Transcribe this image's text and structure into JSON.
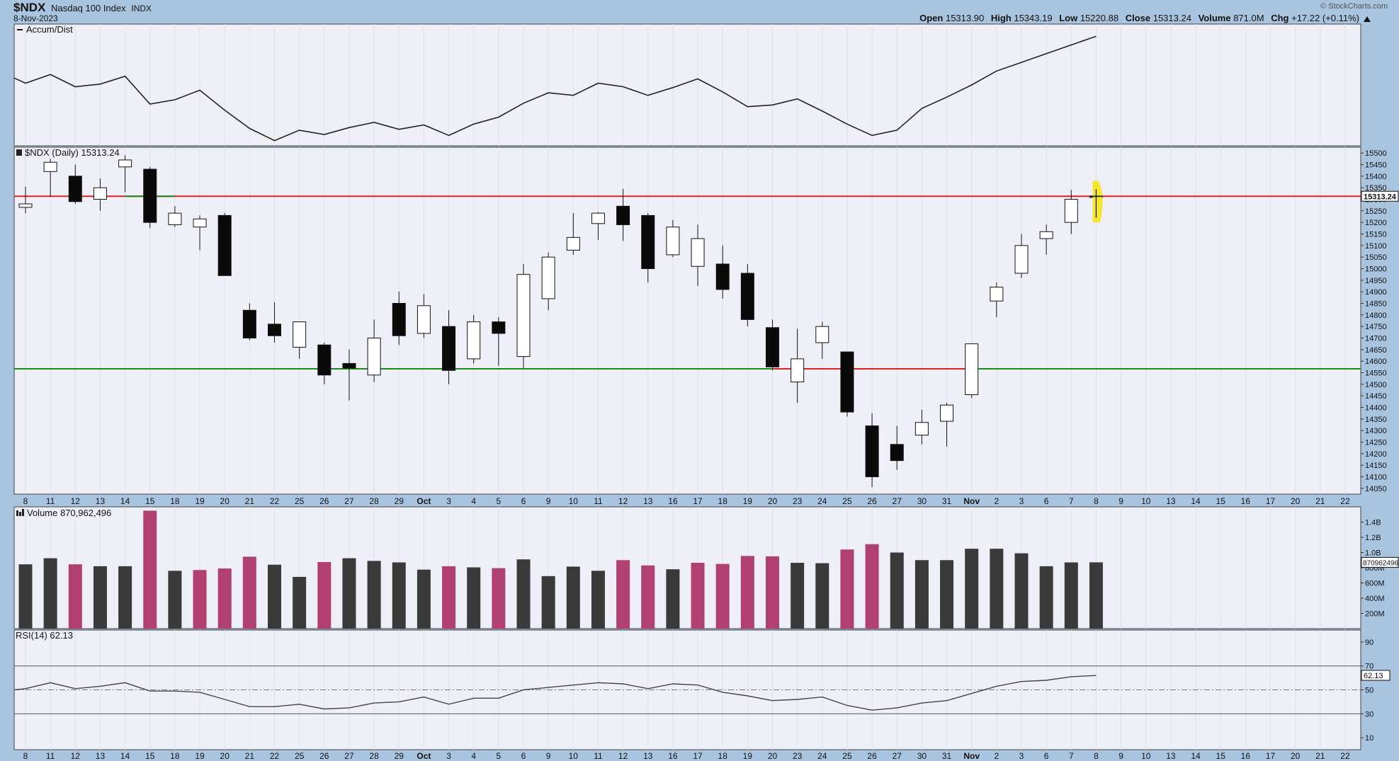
{
  "header": {
    "symbol": "$NDX",
    "name": "Nasdaq 100 Index",
    "exchange": "INDX",
    "date": "8-Nov-2023",
    "source": "© StockCharts.com",
    "ohlc": {
      "open_label": "Open",
      "open": "15313.90",
      "high_label": "High",
      "high": "15343.19",
      "low_label": "Low",
      "low": "15220.88",
      "close_label": "Close",
      "close": "15313.24",
      "volume_label": "Volume",
      "volume": "871.0M",
      "chg_label": "Chg",
      "chg": "+17.22 (+0.11%)"
    }
  },
  "panels": {
    "accum": {
      "label": "Accum/Dist"
    },
    "price": {
      "label": "$NDX (Daily) 15313.24",
      "last_value": "15313.24"
    },
    "volume": {
      "label": "Volume 870,962,496",
      "last_value": "870962496"
    },
    "rsi": {
      "label": "RSI(14) 62.13",
      "last_value": "62.13"
    }
  },
  "colors": {
    "background": "#a9c4df",
    "panel": "#efeff7",
    "resistance": "#e02020",
    "support": "#1a8a1a",
    "volume_up": "#3a3a3a",
    "volume_down": "#b04070",
    "highlight": "#f5e41a"
  },
  "chart_data": [
    {
      "type": "line",
      "panel": "Accum/Dist",
      "title": "Accum/Dist",
      "x": [
        "8",
        "11",
        "12",
        "13",
        "14",
        "15",
        "18",
        "19",
        "20",
        "21",
        "22",
        "25",
        "26",
        "27",
        "28",
        "29",
        "Oct",
        "3",
        "4",
        "5",
        "6",
        "9",
        "10",
        "11",
        "12",
        "13",
        "16",
        "17",
        "18",
        "19",
        "20",
        "23",
        "24",
        "25",
        "26",
        "27",
        "30",
        "31",
        "Nov",
        "2",
        "3",
        "6",
        "7",
        "8"
      ],
      "values": [
        72,
        82,
        68,
        71,
        80,
        48,
        53,
        64,
        41,
        20,
        6,
        18,
        13,
        21,
        27,
        19,
        24,
        12,
        25,
        33,
        49,
        61,
        58,
        72,
        68,
        58,
        67,
        77,
        62,
        45,
        47,
        54,
        40,
        25,
        12,
        18,
        43,
        56,
        70,
        86,
        96,
        106,
        116,
        126
      ],
      "ylim": [
        0,
        140
      ]
    },
    {
      "type": "candlestick",
      "panel": "$NDX (Daily)",
      "title": "$NDX (Daily) 15313.24",
      "ylim": [
        14025,
        15525
      ],
      "yticks": [
        14050,
        14100,
        14150,
        14200,
        14250,
        14300,
        14350,
        14400,
        14450,
        14500,
        14550,
        14600,
        14650,
        14700,
        14750,
        14800,
        14850,
        14900,
        14950,
        15000,
        15050,
        15100,
        15150,
        15200,
        15250,
        15300,
        15350,
        15400,
        15450,
        15500
      ],
      "candles": [
        {
          "x": "8",
          "open": 15265,
          "high": 15355,
          "low": 15240,
          "close": 15280
        },
        {
          "x": "11",
          "open": 15420,
          "high": 15475,
          "low": 15310,
          "close": 15460
        },
        {
          "x": "12",
          "open": 15400,
          "high": 15450,
          "low": 15280,
          "close": 15290
        },
        {
          "x": "13",
          "open": 15300,
          "high": 15390,
          "low": 15250,
          "close": 15350
        },
        {
          "x": "14",
          "open": 15440,
          "high": 15490,
          "low": 15330,
          "close": 15470
        },
        {
          "x": "15",
          "open": 15430,
          "high": 15440,
          "low": 15175,
          "close": 15200
        },
        {
          "x": "18",
          "open": 15190,
          "high": 15270,
          "low": 15180,
          "close": 15240
        },
        {
          "x": "19",
          "open": 15180,
          "high": 15230,
          "low": 15080,
          "close": 15215
        },
        {
          "x": "20",
          "open": 15230,
          "high": 15240,
          "low": 14970,
          "close": 14970
        },
        {
          "x": "21",
          "open": 14820,
          "high": 14850,
          "low": 14690,
          "close": 14700
        },
        {
          "x": "22",
          "open": 14760,
          "high": 14855,
          "low": 14680,
          "close": 14710
        },
        {
          "x": "25",
          "open": 14660,
          "high": 14770,
          "low": 14610,
          "close": 14770
        },
        {
          "x": "26",
          "open": 14670,
          "high": 14680,
          "low": 14500,
          "close": 14540
        },
        {
          "x": "27",
          "open": 14590,
          "high": 14650,
          "low": 14430,
          "close": 14570
        },
        {
          "x": "28",
          "open": 14540,
          "high": 14780,
          "low": 14510,
          "close": 14700
        },
        {
          "x": "29",
          "open": 14850,
          "high": 14900,
          "low": 14670,
          "close": 14710
        },
        {
          "x": "Oct",
          "open": 14720,
          "high": 14890,
          "low": 14700,
          "close": 14840
        },
        {
          "x": "3",
          "open": 14750,
          "high": 14820,
          "low": 14500,
          "close": 14560
        },
        {
          "x": "4",
          "open": 14610,
          "high": 14800,
          "low": 14590,
          "close": 14770
        },
        {
          "x": "5",
          "open": 14770,
          "high": 14790,
          "low": 14580,
          "close": 14720
        },
        {
          "x": "6",
          "open": 14620,
          "high": 15020,
          "low": 14570,
          "close": 14975
        },
        {
          "x": "9",
          "open": 14870,
          "high": 15070,
          "low": 14820,
          "close": 15050
        },
        {
          "x": "10",
          "open": 15080,
          "high": 15240,
          "low": 15060,
          "close": 15135
        },
        {
          "x": "11",
          "open": 15195,
          "high": 15245,
          "low": 15125,
          "close": 15240
        },
        {
          "x": "12",
          "open": 15270,
          "high": 15345,
          "low": 15120,
          "close": 15190
        },
        {
          "x": "13",
          "open": 15230,
          "high": 15240,
          "low": 14940,
          "close": 15000
        },
        {
          "x": "16",
          "open": 15060,
          "high": 15210,
          "low": 15050,
          "close": 15180
        },
        {
          "x": "17",
          "open": 15010,
          "high": 15190,
          "low": 14925,
          "close": 15130
        },
        {
          "x": "18",
          "open": 15020,
          "high": 15100,
          "low": 14870,
          "close": 14910
        },
        {
          "x": "19",
          "open": 14980,
          "high": 15020,
          "low": 14750,
          "close": 14780
        },
        {
          "x": "20",
          "open": 14745,
          "high": 14780,
          "low": 14560,
          "close": 14575
        },
        {
          "x": "23",
          "open": 14510,
          "high": 14740,
          "low": 14420,
          "close": 14610
        },
        {
          "x": "24",
          "open": 14680,
          "high": 14770,
          "low": 14610,
          "close": 14750
        },
        {
          "x": "25",
          "open": 14640,
          "high": 14640,
          "low": 14360,
          "close": 14380
        },
        {
          "x": "26",
          "open": 14320,
          "high": 14375,
          "low": 14055,
          "close": 14100
        },
        {
          "x": "27",
          "open": 14240,
          "high": 14320,
          "low": 14130,
          "close": 14170
        },
        {
          "x": "30",
          "open": 14280,
          "high": 14390,
          "low": 14240,
          "close": 14335
        },
        {
          "x": "31",
          "open": 14340,
          "high": 14420,
          "low": 14230,
          "close": 14410
        },
        {
          "x": "Nov",
          "open": 14455,
          "high": 14670,
          "low": 14440,
          "close": 14675
        },
        {
          "x": "2",
          "open": 14860,
          "high": 14940,
          "low": 14790,
          "close": 14920
        },
        {
          "x": "3",
          "open": 14980,
          "high": 15150,
          "low": 14960,
          "close": 15100
        },
        {
          "x": "6",
          "open": 15130,
          "high": 15190,
          "low": 15060,
          "close": 15160
        },
        {
          "x": "7",
          "open": 15200,
          "high": 15340,
          "low": 15150,
          "close": 15300
        },
        {
          "x": "8",
          "open": 15314,
          "high": 15343,
          "low": 15221,
          "close": 15313
        }
      ],
      "resistance": 15313,
      "support": 14567
    },
    {
      "type": "bar",
      "panel": "Volume",
      "title": "Volume 870,962,496",
      "ylim": [
        0,
        1600
      ],
      "yticks": [
        "200M",
        "400M",
        "600M",
        "800M",
        "1.0B",
        "1.2B",
        "1.4B"
      ],
      "yticks_values": [
        200,
        400,
        600,
        800,
        1000,
        1200,
        1400
      ],
      "categories": [
        "8",
        "11",
        "12",
        "13",
        "14",
        "15",
        "18",
        "19",
        "20",
        "21",
        "22",
        "25",
        "26",
        "27",
        "28",
        "29",
        "Oct",
        "3",
        "4",
        "5",
        "6",
        "9",
        "10",
        "11",
        "12",
        "13",
        "16",
        "17",
        "18",
        "19",
        "20",
        "23",
        "24",
        "25",
        "26",
        "27",
        "30",
        "31",
        "Nov",
        "2",
        "3",
        "6",
        "7",
        "8"
      ],
      "values": [
        845,
        925,
        845,
        820,
        820,
        1550,
        760,
        770,
        790,
        945,
        840,
        680,
        875,
        925,
        890,
        870,
        775,
        820,
        805,
        795,
        910,
        690,
        815,
        760,
        900,
        830,
        780,
        865,
        850,
        955,
        950,
        865,
        860,
        1040,
        1110,
        1000,
        900,
        900,
        1050,
        1050,
        990,
        820,
        870,
        871
      ],
      "up_down": [
        "u",
        "u",
        "d",
        "u",
        "u",
        "d",
        "u",
        "d",
        "d",
        "d",
        "u",
        "u",
        "d",
        "u",
        "u",
        "u",
        "u",
        "d",
        "u",
        "d",
        "u",
        "u",
        "u",
        "u",
        "d",
        "d",
        "u",
        "d",
        "d",
        "d",
        "d",
        "u",
        "u",
        "d",
        "d",
        "u",
        "u",
        "u",
        "u",
        "u",
        "u",
        "u",
        "u",
        "u"
      ]
    },
    {
      "type": "line",
      "panel": "RSI(14)",
      "title": "RSI(14) 62.13",
      "ylim": [
        0,
        100
      ],
      "yticks": [
        10,
        30,
        50,
        70,
        90
      ],
      "x": [
        "8",
        "11",
        "12",
        "13",
        "14",
        "15",
        "18",
        "19",
        "20",
        "21",
        "22",
        "25",
        "26",
        "27",
        "28",
        "29",
        "Oct",
        "3",
        "4",
        "5",
        "6",
        "9",
        "10",
        "11",
        "12",
        "13",
        "16",
        "17",
        "18",
        "19",
        "20",
        "23",
        "24",
        "25",
        "26",
        "27",
        "30",
        "31",
        "Nov",
        "2",
        "3",
        "6",
        "7",
        "8"
      ],
      "values": [
        51,
        56,
        51,
        53,
        56,
        49,
        49,
        48,
        42,
        36,
        36,
        38,
        34,
        35,
        39,
        40,
        44,
        38,
        43,
        43,
        50,
        52,
        54,
        56,
        55,
        51,
        55,
        54,
        48,
        45,
        41,
        42,
        44,
        37,
        33,
        35,
        39,
        41,
        47,
        53,
        57,
        58,
        61,
        62
      ]
    }
  ],
  "x_axis_labels": [
    "8",
    "11",
    "12",
    "13",
    "14",
    "15",
    "18",
    "19",
    "20",
    "21",
    "22",
    "25",
    "26",
    "27",
    "28",
    "29",
    "Oct",
    "3",
    "4",
    "5",
    "6",
    "9",
    "10",
    "11",
    "12",
    "13",
    "16",
    "17",
    "18",
    "19",
    "20",
    "23",
    "24",
    "25",
    "26",
    "27",
    "30",
    "31",
    "Nov",
    "2",
    "3",
    "6",
    "7",
    "8",
    "9",
    "10",
    "13",
    "14",
    "15",
    "16",
    "17",
    "20",
    "21",
    "22"
  ]
}
